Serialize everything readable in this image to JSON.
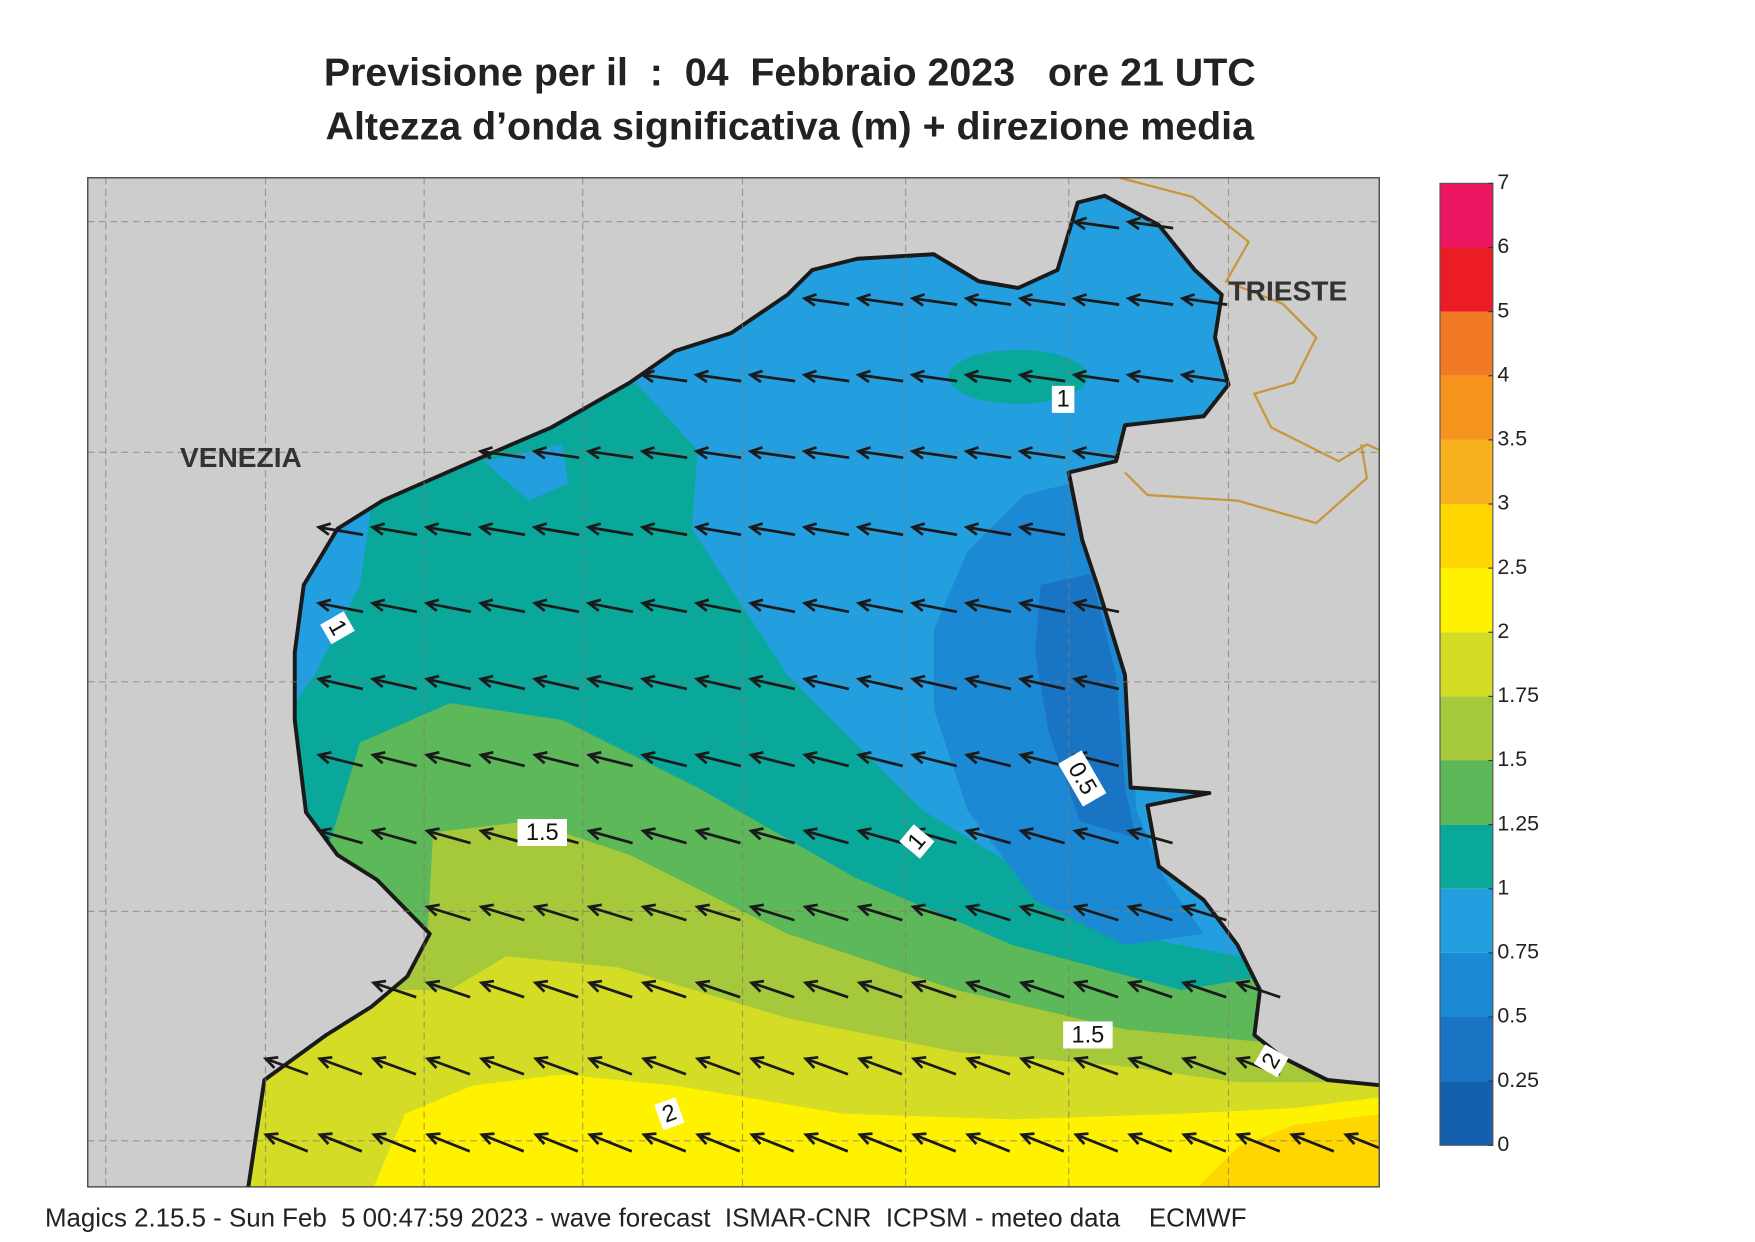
{
  "map": {
    "title": [
      "Previsione per il  :  04  Febbraio 2023   ore 21 UTC",
      "Altezza d’onda significativa (m) + direzione media"
    ],
    "places": [
      "VENEZIA",
      "TRIESTE"
    ],
    "footer": "Magics 2.15.5 - Sun Feb  5 00:47:59 2023 - wave forecast  ISMAR-CNR  ICPSM - meteo data    ECMWF",
    "contour_labels": [
      1,
      1,
      0.5,
      1.5,
      1,
      1.5,
      2,
      2
    ],
    "colorbar": {
      "ticks": [
        0,
        0.25,
        0.5,
        0.75,
        1,
        1.25,
        1.5,
        1.75,
        2,
        2.5,
        3,
        3.5,
        4,
        5,
        6,
        7
      ],
      "colors": [
        "#1460ae",
        "#1a74c4",
        "#1c89d4",
        "#239fe0",
        "#0aa89b",
        "#5db859",
        "#a6c93b",
        "#d4dc26",
        "#fff200",
        "#ffd600",
        "#f9b21f",
        "#f7941d",
        "#f27a24",
        "#ec1c24",
        "#ec1562"
      ]
    }
  }
}
